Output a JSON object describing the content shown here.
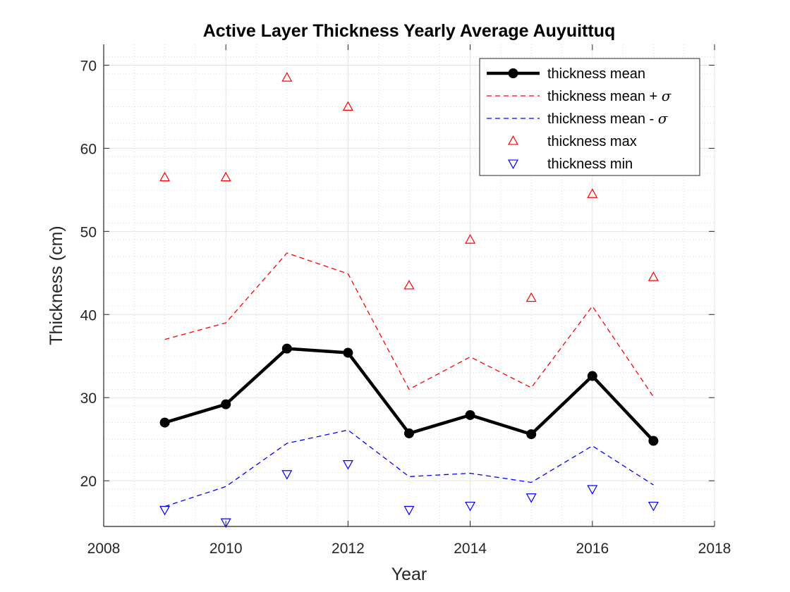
{
  "chart_data": {
    "type": "line",
    "title": "Active Layer Thickness Yearly Average Auyuittuq",
    "xlabel": "Year",
    "ylabel": "Thickness (cm)",
    "xlim": [
      2008,
      2018
    ],
    "ylim": [
      14.5,
      72.5
    ],
    "xticks": [
      2008,
      2010,
      2012,
      2014,
      2016,
      2018
    ],
    "yticks": [
      20,
      30,
      40,
      50,
      60,
      70
    ],
    "grid": true,
    "minor_grid": true,
    "legend_position": "top-right",
    "x": [
      2009,
      2010,
      2011,
      2012,
      2013,
      2014,
      2015,
      2016,
      2017
    ],
    "series": [
      {
        "name": "thickness mean",
        "legend_parts": [
          "thickness mean"
        ],
        "style": "solid-thick-marker",
        "color": "#000000",
        "values": [
          27.0,
          29.2,
          35.9,
          35.4,
          25.7,
          27.9,
          25.6,
          32.6,
          24.8
        ]
      },
      {
        "name": "thickness mean + σ",
        "legend_parts": [
          "thickness mean + ",
          "σ"
        ],
        "style": "dashed",
        "color": "#ff0000",
        "values": [
          37.0,
          39.0,
          47.4,
          44.9,
          31.0,
          34.9,
          31.2,
          41.0,
          30.1
        ]
      },
      {
        "name": "thickness mean - σ",
        "legend_parts": [
          "thickness mean - ",
          "σ"
        ],
        "style": "dashed",
        "color": "#0000ff",
        "values": [
          16.9,
          19.3,
          24.5,
          26.1,
          20.5,
          20.9,
          19.8,
          24.2,
          19.5
        ]
      },
      {
        "name": "thickness max",
        "legend_parts": [
          "thickness max"
        ],
        "style": "triangle-up",
        "color": "#ff0000",
        "values": [
          56.5,
          56.5,
          68.5,
          65.0,
          43.5,
          49.0,
          42.0,
          54.5,
          44.5
        ]
      },
      {
        "name": "thickness min",
        "legend_parts": [
          "thickness min"
        ],
        "style": "triangle-down",
        "color": "#0000ff",
        "values": [
          16.5,
          15.0,
          20.8,
          22.0,
          16.5,
          17.0,
          18.0,
          19.0,
          17.0
        ]
      }
    ]
  }
}
